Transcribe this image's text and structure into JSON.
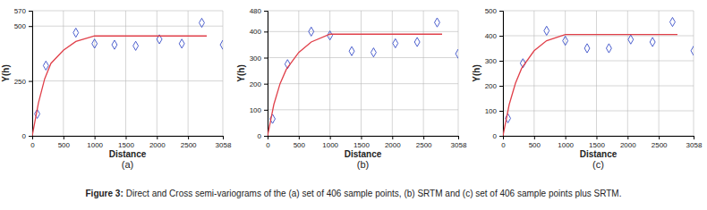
{
  "chart_data": [
    {
      "type": "scatter",
      "subtitle": "(a)",
      "x_label": "Distance",
      "y_label": "Y(h)",
      "xlim": [
        0,
        3058
      ],
      "ylim": [
        0,
        570
      ],
      "xticks": [
        0,
        500,
        1000,
        1500,
        2000,
        2500,
        3058
      ],
      "yticks": [
        0,
        250,
        500,
        570
      ],
      "grid": true,
      "series": [
        {
          "type": "scatter",
          "marker": "diamond",
          "color": "#3a4fc8",
          "x": [
            80,
            220,
            700,
            1000,
            1320,
            1660,
            2040,
            2400,
            2720,
            3058
          ],
          "values": [
            100,
            320,
            470,
            420,
            415,
            410,
            440,
            420,
            515,
            415
          ]
        },
        {
          "type": "line",
          "line_style": "solid",
          "color": "#e0404a",
          "x": [
            0,
            100,
            200,
            300,
            500,
            700,
            1000,
            2800
          ],
          "values": [
            0,
            150,
            260,
            330,
            390,
            430,
            455,
            455
          ]
        }
      ]
    },
    {
      "type": "scatter",
      "subtitle": "(b)",
      "x_label": "Distance",
      "y_label": "Y(h)",
      "xlim": [
        0,
        3058
      ],
      "ylim": [
        0,
        480
      ],
      "xticks": [
        0,
        500,
        1000,
        1500,
        2000,
        2500,
        3058
      ],
      "yticks": [
        0,
        100,
        200,
        300,
        400,
        480
      ],
      "grid": true,
      "series": [
        {
          "type": "scatter",
          "marker": "diamond",
          "color": "#3a4fc8",
          "x": [
            80,
            320,
            700,
            1000,
            1350,
            1700,
            2050,
            2400,
            2720,
            3058
          ],
          "values": [
            65,
            275,
            400,
            385,
            325,
            320,
            355,
            360,
            435,
            315
          ]
        },
        {
          "type": "line",
          "line_style": "solid",
          "color": "#e0404a",
          "x": [
            0,
            100,
            200,
            300,
            500,
            700,
            1000,
            2800
          ],
          "values": [
            0,
            120,
            200,
            255,
            320,
            360,
            390,
            390
          ]
        }
      ]
    },
    {
      "type": "scatter",
      "subtitle": "(c)",
      "x_label": "Distance",
      "y_label": "Y(h)",
      "xlim": [
        0,
        3058
      ],
      "ylim": [
        0,
        500
      ],
      "xticks": [
        0,
        500,
        1000,
        1500,
        2000,
        2500,
        3058
      ],
      "yticks": [
        0,
        100,
        200,
        300,
        400,
        500
      ],
      "grid": true,
      "series": [
        {
          "type": "scatter",
          "marker": "diamond",
          "color": "#3a4fc8",
          "x": [
            80,
            320,
            700,
            1000,
            1350,
            1700,
            2050,
            2400,
            2720,
            3058
          ],
          "values": [
            70,
            290,
            420,
            380,
            350,
            350,
            385,
            375,
            455,
            340
          ]
        },
        {
          "type": "line",
          "line_style": "solid",
          "color": "#e0404a",
          "x": [
            0,
            100,
            200,
            300,
            500,
            700,
            1000,
            2800
          ],
          "values": [
            0,
            125,
            210,
            270,
            340,
            380,
            405,
            405
          ]
        }
      ]
    }
  ],
  "caption_label": "Figure 3:",
  "caption": "Direct and Cross semi-variograms of the (a) set of 406 sample points, (b) SRTM and (c) set of 406 sample points plus SRTM."
}
